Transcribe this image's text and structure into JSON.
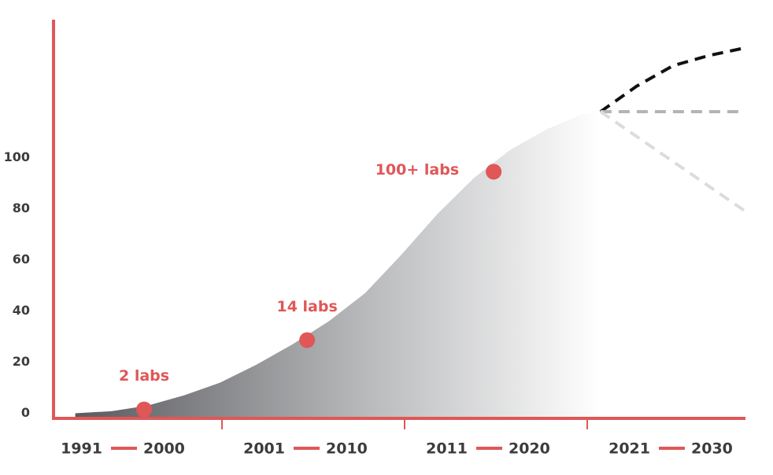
{
  "chart_data": {
    "type": "area",
    "x": [
      1993,
      1995,
      1997,
      1999,
      2001,
      2003,
      2005,
      2007,
      2009,
      2011,
      2013,
      2015,
      2017,
      2019,
      2021,
      2022
    ],
    "values": [
      0,
      0.8,
      3,
      7,
      12,
      19,
      27,
      36,
      47,
      62,
      78,
      92,
      103,
      111,
      117,
      118
    ],
    "xlim": [
      1991.8,
      2030
    ],
    "ylim": [
      -2,
      154
    ],
    "yticks": [
      0,
      20,
      40,
      60,
      80,
      100
    ],
    "axis_color": "#e05757",
    "forecasts": [
      {
        "color": "#111111",
        "x": [
          2022,
          2024,
          2026,
          2028,
          2030
        ],
        "values": [
          118,
          128,
          136,
          140,
          143
        ]
      },
      {
        "color": "#b4b4b4",
        "x": [
          2022,
          2030
        ],
        "values": [
          118,
          118
        ]
      },
      {
        "color": "#dcdcdc",
        "x": [
          2022,
          2030
        ],
        "values": [
          118,
          79
        ]
      }
    ],
    "points": [
      {
        "x": 1996.8,
        "y": 1.5,
        "label": "2 labs"
      },
      {
        "x": 2005.8,
        "y": 28.6,
        "label": "14 labs"
      },
      {
        "x": 2016.1,
        "y": 94.5,
        "label": "100+ labs"
      }
    ],
    "periods": [
      {
        "start": "1991",
        "end": "2000"
      },
      {
        "start": "2001",
        "end": "2010"
      },
      {
        "start": "2011",
        "end": "2020"
      },
      {
        "start": "2021",
        "end": "2030"
      }
    ]
  }
}
